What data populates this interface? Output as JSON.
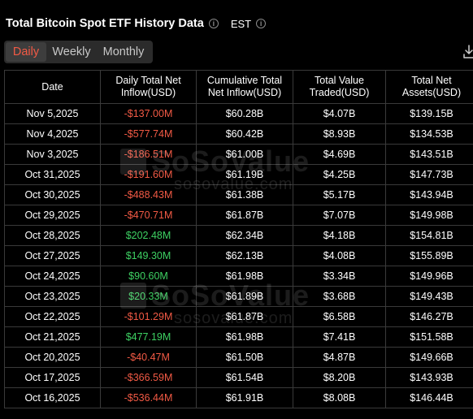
{
  "header": {
    "title": "Total Bitcoin Spot ETF History Data",
    "timezone": "EST",
    "info_icon": "info-icon"
  },
  "tabs": [
    {
      "label": "Daily",
      "active": true
    },
    {
      "label": "Weekly",
      "active": false
    },
    {
      "label": "Monthly",
      "active": false
    }
  ],
  "download_icon": "download-icon",
  "colors": {
    "accent": "#f25a45",
    "positive": "#3ed163",
    "negative": "#f25a45",
    "background": "#000000",
    "border": "#3a3a3a"
  },
  "table": {
    "columns": [
      "Date",
      "Daily Total Net Inflow(USD)",
      "Cumulative Total Net Inflow(USD)",
      "Total Value Traded(USD)",
      "Total Net Assets(USD)"
    ],
    "rows": [
      {
        "date": "Nov 5,2025",
        "daily": "-$137.00M",
        "dir": "neg",
        "cumulative": "$60.28B",
        "traded": "$4.07B",
        "assets": "$139.15B"
      },
      {
        "date": "Nov 4,2025",
        "daily": "-$577.74M",
        "dir": "neg",
        "cumulative": "$60.42B",
        "traded": "$8.93B",
        "assets": "$134.53B"
      },
      {
        "date": "Nov 3,2025",
        "daily": "-$186.51M",
        "dir": "neg",
        "cumulative": "$61.00B",
        "traded": "$4.69B",
        "assets": "$143.51B"
      },
      {
        "date": "Oct 31,2025",
        "daily": "-$191.60M",
        "dir": "neg",
        "cumulative": "$61.19B",
        "traded": "$4.25B",
        "assets": "$147.73B"
      },
      {
        "date": "Oct 30,2025",
        "daily": "-$488.43M",
        "dir": "neg",
        "cumulative": "$61.38B",
        "traded": "$5.17B",
        "assets": "$143.94B"
      },
      {
        "date": "Oct 29,2025",
        "daily": "-$470.71M",
        "dir": "neg",
        "cumulative": "$61.87B",
        "traded": "$7.07B",
        "assets": "$149.98B"
      },
      {
        "date": "Oct 28,2025",
        "daily": "$202.48M",
        "dir": "pos",
        "cumulative": "$62.34B",
        "traded": "$4.18B",
        "assets": "$154.81B"
      },
      {
        "date": "Oct 27,2025",
        "daily": "$149.30M",
        "dir": "pos",
        "cumulative": "$62.13B",
        "traded": "$4.08B",
        "assets": "$155.89B"
      },
      {
        "date": "Oct 24,2025",
        "daily": "$90.60M",
        "dir": "pos",
        "cumulative": "$61.98B",
        "traded": "$3.34B",
        "assets": "$149.96B"
      },
      {
        "date": "Oct 23,2025",
        "daily": "$20.33M",
        "dir": "pos",
        "cumulative": "$61.89B",
        "traded": "$3.68B",
        "assets": "$149.43B"
      },
      {
        "date": "Oct 22,2025",
        "daily": "-$101.29M",
        "dir": "neg",
        "cumulative": "$61.87B",
        "traded": "$6.58B",
        "assets": "$146.27B"
      },
      {
        "date": "Oct 21,2025",
        "daily": "$477.19M",
        "dir": "pos",
        "cumulative": "$61.98B",
        "traded": "$7.41B",
        "assets": "$151.58B"
      },
      {
        "date": "Oct 20,2025",
        "daily": "-$40.47M",
        "dir": "neg",
        "cumulative": "$61.50B",
        "traded": "$4.87B",
        "assets": "$149.66B"
      },
      {
        "date": "Oct 17,2025",
        "daily": "-$366.59M",
        "dir": "neg",
        "cumulative": "$61.54B",
        "traded": "$8.20B",
        "assets": "$143.93B"
      },
      {
        "date": "Oct 16,2025",
        "daily": "-$536.44M",
        "dir": "neg",
        "cumulative": "$61.91B",
        "traded": "$8.08B",
        "assets": "$146.44B"
      }
    ]
  },
  "watermark": {
    "name": "SoSoValue",
    "url": "sosovalue.com"
  }
}
